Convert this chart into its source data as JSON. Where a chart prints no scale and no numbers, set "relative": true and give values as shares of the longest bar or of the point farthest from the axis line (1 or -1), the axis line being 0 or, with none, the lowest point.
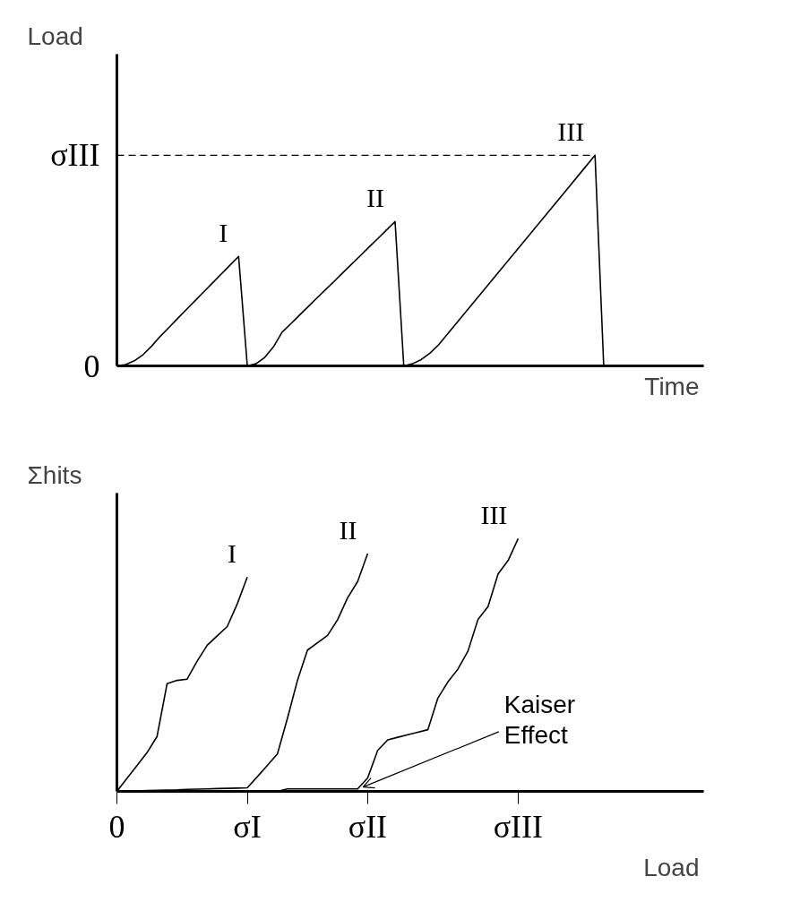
{
  "chart_data": [
    {
      "type": "line",
      "xlabel": "Time",
      "ylabel": "Load",
      "relative": true,
      "categories": [
        null,
        null,
        null,
        null,
        null,
        null,
        null,
        null,
        null,
        null,
        null,
        null,
        null,
        null,
        null,
        null,
        null,
        null,
        null,
        null,
        null,
        null,
        null,
        null,
        null,
        null,
        null,
        null,
        null,
        null,
        null,
        null,
        null,
        null,
        null,
        null,
        null,
        null,
        null,
        null,
        null,
        null,
        null,
        null,
        null,
        null,
        null,
        null,
        null,
        null,
        null,
        null,
        null,
        null,
        null,
        null,
        null,
        null,
        null,
        null,
        null,
        null,
        null,
        null,
        null,
        null,
        null,
        null
      ],
      "ref_lines": [
        {
          "axis": "y",
          "value": 0,
          "label": "0",
          "color": "#000000"
        },
        {
          "axis": "y",
          "value": 1,
          "label": "σIII",
          "line_style": "dashed",
          "color": "#000000"
        }
      ],
      "series": [
        {
          "name": "I",
          "color": "#000000",
          "values": [
            0,
            0.006,
            0.024,
            0.053,
            0.094,
            0.141,
            0.183,
            0.226,
            0.268,
            0.31,
            0.352,
            0.394,
            0.436,
            0.478,
            0.52,
            0,
            null,
            null,
            null,
            null,
            null,
            null,
            null,
            null,
            null,
            null,
            null,
            null,
            null,
            null,
            null,
            null,
            null,
            null,
            null,
            null,
            null,
            null,
            null,
            null,
            null,
            null,
            null,
            null,
            null,
            null,
            null,
            null,
            null,
            null,
            null,
            null,
            null,
            null,
            null,
            null,
            null,
            null,
            null,
            null,
            null,
            null,
            null,
            null,
            null,
            null,
            null,
            null
          ]
        },
        {
          "name": "II",
          "color": "#000000",
          "values": [
            null,
            null,
            null,
            null,
            null,
            null,
            null,
            null,
            null,
            null,
            null,
            null,
            null,
            null,
            null,
            0,
            0.01,
            0.04,
            0.09,
            0.16,
            0.2,
            0.241,
            0.281,
            0.322,
            0.362,
            0.402,
            0.443,
            0.483,
            0.523,
            0.564,
            0.604,
            0.645,
            0.685,
            0,
            null,
            null,
            null,
            null,
            null,
            null,
            null,
            null,
            null,
            null,
            null,
            null,
            null,
            null,
            null,
            null,
            null,
            null,
            null,
            null,
            null,
            null,
            null,
            null,
            null,
            null,
            null,
            null,
            null,
            null,
            null,
            null,
            null,
            null
          ]
        },
        {
          "name": "III",
          "color": "#000000",
          "values": [
            null,
            null,
            null,
            null,
            null,
            null,
            null,
            null,
            null,
            null,
            null,
            null,
            null,
            null,
            null,
            null,
            null,
            null,
            null,
            null,
            null,
            null,
            null,
            null,
            null,
            null,
            null,
            null,
            null,
            null,
            null,
            null,
            null,
            0,
            0.01,
            0.03,
            0.06,
            0.1,
            0.15,
            0.2,
            0.25,
            0.3,
            0.35,
            0.4,
            0.45,
            0.5,
            0.55,
            0.6,
            0.65,
            0.7,
            0.75,
            0.8,
            0.85,
            0.9,
            0.95,
            1.0,
            0,
            null,
            null,
            null,
            null,
            null,
            null,
            null,
            null,
            null,
            null,
            null
          ]
        }
      ]
    },
    {
      "type": "line",
      "xlabel": "Load",
      "ylabel": "Σhits",
      "relative": true,
      "categories": [
        "0",
        null,
        null,
        null,
        null,
        null,
        null,
        null,
        null,
        null,
        null,
        null,
        null,
        "σI",
        null,
        null,
        null,
        null,
        null,
        null,
        null,
        null,
        null,
        null,
        null,
        "σII",
        null,
        null,
        null,
        null,
        null,
        null,
        null,
        null,
        null,
        null,
        null,
        null,
        null,
        null,
        "σIII",
        null,
        null,
        null,
        null,
        null,
        null,
        null,
        null,
        null,
        null,
        null,
        null,
        null,
        null,
        null,
        null,
        null,
        null
      ],
      "annotations": [
        "Kaiser\nEffect"
      ],
      "series": [
        {
          "name": "I",
          "color": "#000000",
          "values": [
            0,
            0.051,
            0.102,
            0.153,
            0.217,
            0.426,
            0.439,
            0.444,
            0.515,
            0.578,
            0.615,
            0.652,
            0.742,
            0.848,
            null,
            null,
            null,
            null,
            null,
            null,
            null,
            null,
            null,
            null,
            null,
            null,
            null,
            null,
            null,
            null,
            null,
            null,
            null,
            null,
            null,
            null,
            null,
            null,
            null,
            null,
            null,
            null,
            null,
            null,
            null,
            null,
            null,
            null,
            null,
            null,
            null,
            null,
            null,
            null,
            null,
            null,
            null,
            null,
            null
          ]
        },
        {
          "name": "II",
          "color": "#000000",
          "values": [
            0,
            0.001,
            0.002,
            0.003,
            0.004,
            0.005,
            0.006,
            0.008,
            0.009,
            0.01,
            0.011,
            0.012,
            0.013,
            0.014,
            0.058,
            0.103,
            0.148,
            0.289,
            0.439,
            0.559,
            0.588,
            0.617,
            0.679,
            0.766,
            0.83,
            0.941,
            null,
            null,
            null,
            null,
            null,
            null,
            null,
            null,
            null,
            null,
            null,
            null,
            null,
            null,
            null,
            null,
            null,
            null,
            null,
            null,
            null,
            null,
            null,
            null,
            null,
            null,
            null,
            null,
            null,
            null,
            null,
            null,
            null
          ]
        },
        {
          "name": "III",
          "color": "#000000",
          "values": [
            0,
            0,
            0,
            0,
            0,
            0,
            0,
            0,
            0,
            0,
            0,
            0,
            0,
            0,
            0,
            0,
            0,
            0.01,
            0.01,
            0.01,
            0.01,
            0.01,
            0.01,
            0.01,
            0.01,
            0.053,
            0.162,
            0.204,
            0.214,
            0.224,
            0.234,
            0.244,
            0.369,
            0.433,
            0.484,
            0.555,
            0.68,
            0.731,
            0.86,
            0.913,
            1.0,
            null,
            null,
            null,
            null,
            null,
            null,
            null,
            null,
            null,
            null,
            null,
            null,
            null,
            null,
            null,
            null,
            null,
            null
          ]
        }
      ]
    }
  ]
}
